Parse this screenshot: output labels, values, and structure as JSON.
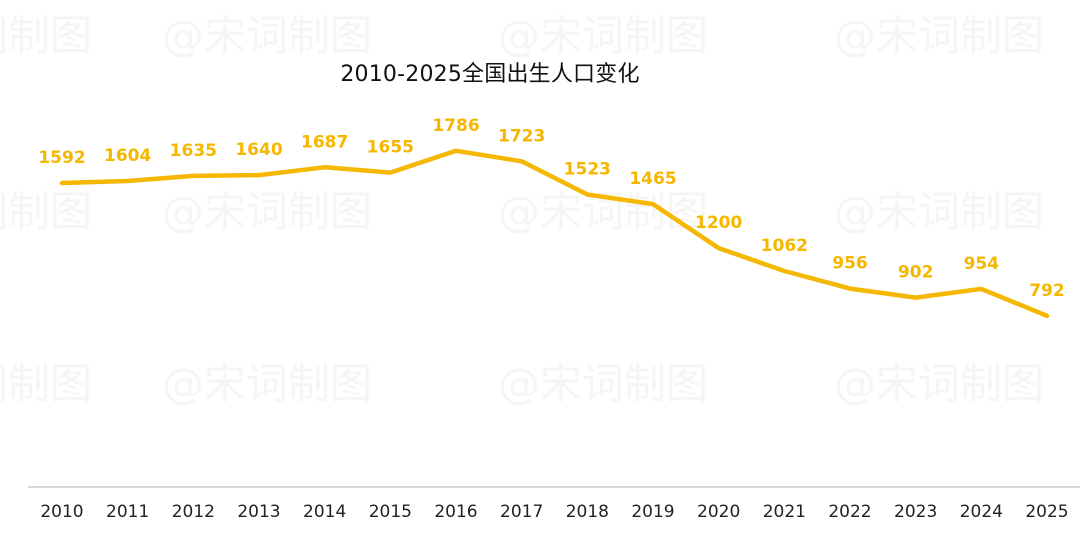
{
  "watermark_text": "@宋词制图",
  "chart_data": {
    "type": "line",
    "title": "2010-2025全国出生人口变化",
    "xlabel": "",
    "ylabel": "",
    "categories": [
      "2010",
      "2011",
      "2012",
      "2013",
      "2014",
      "2015",
      "2016",
      "2017",
      "2018",
      "2019",
      "2020",
      "2021",
      "2022",
      "2023",
      "2024",
      "2025"
    ],
    "series": [
      {
        "values": [
          1592,
          1604,
          1635,
          1640,
          1687,
          1655,
          1786,
          1723,
          1523,
          1465,
          1200,
          1062,
          956,
          902,
          954,
          792
        ],
        "color": "#F5B700"
      }
    ],
    "data_labels": true,
    "drop_lines": true,
    "drop_line_color": "#3F7FE0",
    "axis_color": "#CCCCCC",
    "grid": false,
    "legend": "none",
    "ylim": [
      0,
      2200
    ]
  }
}
